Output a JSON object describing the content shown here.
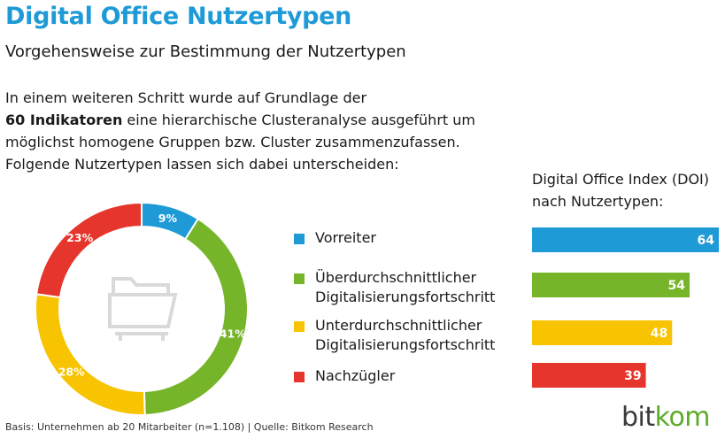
{
  "header": {
    "title": "Digital Office Nutzertypen",
    "subtitle": "Vorgehensweise zur Bestimmung der Nutzertypen"
  },
  "intro": {
    "line1": "In einem weiteren Schritt wurde auf Grundlage der",
    "line2_bold": "60 Indikatoren",
    "line2_rest": " eine hierarchische Clusteranalyse ausgeführt um",
    "line3": "möglichst homogene Gruppen bzw. Cluster zusammenzufassen.",
    "line4": "Folgende Nutzertypen lassen sich dabei unterscheiden:"
  },
  "colors": {
    "blue": "#1e9ad6",
    "green": "#76b52a",
    "yellow": "#f8c300",
    "red": "#e5352c",
    "icon": "#d9d9d9"
  },
  "center_icon": "folder-icon",
  "legend": {
    "items": [
      {
        "label": "Vorreiter",
        "color": "#1e9ad6"
      },
      {
        "label": "Überdurchschnittlicher\nDigitalisierungsfortschritt",
        "color": "#76b52a"
      },
      {
        "label": "Unterdurchschnittlicher\nDigitalisierungsfortschritt",
        "color": "#f8c300"
      },
      {
        "label": "Nachzügler",
        "color": "#e5352c"
      }
    ]
  },
  "chart_data": [
    {
      "type": "pie",
      "donut": true,
      "title": "",
      "categories": [
        "Vorreiter",
        "Überdurchschnittlicher Digitalisierungsfortschritt",
        "Unterdurchschnittlicher Digitalisierungsfortschritt",
        "Nachzügler"
      ],
      "values": [
        9,
        41,
        28,
        23
      ],
      "value_labels": [
        "9%",
        "41%",
        "28%",
        "23%"
      ],
      "colors": [
        "#1e9ad6",
        "#76b52a",
        "#f8c300",
        "#e5352c"
      ],
      "unit": "%"
    },
    {
      "type": "bar",
      "orientation": "horizontal",
      "title": "Digital Office Index (DOI) nach Nutzertypen:",
      "title_lines": [
        "Digital Office Index (DOI)",
        "nach Nutzertypen:"
      ],
      "categories": [
        "Vorreiter",
        "Überdurchschnittlicher Digitalisierungsfortschritt",
        "Unterdurchschnittlicher Digitalisierungsfortschritt",
        "Nachzügler"
      ],
      "values": [
        64,
        54,
        48,
        39
      ],
      "colors": [
        "#1e9ad6",
        "#76b52a",
        "#f8c300",
        "#e5352c"
      ],
      "xlim": [
        0,
        64
      ],
      "axis_labels": false,
      "grid": false
    }
  ],
  "footer": {
    "source": "Basis: Unternehmen ab 20 Mitarbeiter (n=1.108) | Quelle: Bitkom Research"
  },
  "logo": {
    "part1": "bit",
    "part2": "kom"
  }
}
